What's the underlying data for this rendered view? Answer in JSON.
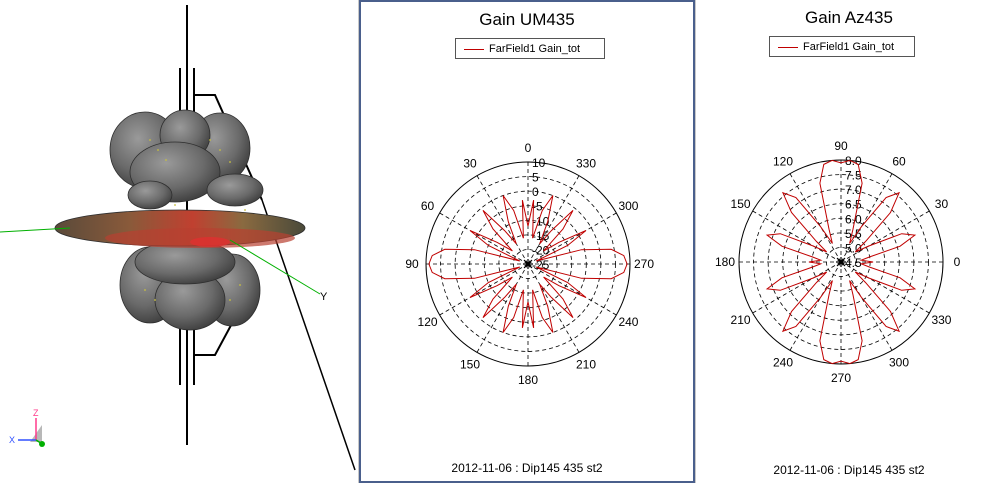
{
  "view3d": {
    "axis_labels": {
      "y": "Y",
      "z": "Z",
      "x": "X"
    },
    "colors": {
      "lobe": "#6a6a6a",
      "lobe_edge": "#2e2e2e",
      "mast": "#000000",
      "axis_y": "#00b000",
      "axis_z": "#ff3b8b"
    }
  },
  "chart_data": [
    {
      "type": "polar",
      "title": "Gain UM435",
      "legend": {
        "entries": [
          "FarField1 Gain_tot"
        ],
        "placement": "top"
      },
      "series": [
        {
          "name": "FarField1 Gain_tot",
          "color": "#c00000"
        }
      ],
      "angle_labels": [
        {
          "angle_deg": 0,
          "label": "0"
        },
        {
          "angle_deg": 30,
          "label": "30"
        },
        {
          "angle_deg": 60,
          "label": "60"
        },
        {
          "angle_deg": 90,
          "label": "90"
        },
        {
          "angle_deg": 120,
          "label": "120"
        },
        {
          "angle_deg": 150,
          "label": "150"
        },
        {
          "angle_deg": 180,
          "label": "180"
        },
        {
          "angle_deg": 210,
          "label": "210"
        },
        {
          "angle_deg": 240,
          "label": "240"
        },
        {
          "angle_deg": 270,
          "label": "270"
        },
        {
          "angle_deg": 300,
          "label": "300"
        },
        {
          "angle_deg": 330,
          "label": "330"
        }
      ],
      "angle_zero": "top",
      "angle_direction": "counterclockwise",
      "radial_range": [
        -25,
        10
      ],
      "radial_ticks": [
        10,
        5,
        0,
        -5,
        -10,
        -15,
        -20,
        -25
      ],
      "radial_tick_labels": [
        "10",
        "5",
        "0",
        "-5",
        "-10",
        "-15",
        "-20",
        "-25"
      ],
      "grid": true,
      "curve": [
        [
          0,
          -12
        ],
        [
          5,
          -3
        ],
        [
          10,
          -16
        ],
        [
          15,
          -6
        ],
        [
          20,
          0
        ],
        [
          25,
          -9
        ],
        [
          30,
          -17
        ],
        [
          35,
          -11
        ],
        [
          40,
          -1
        ],
        [
          45,
          -8
        ],
        [
          50,
          -18
        ],
        [
          55,
          -12
        ],
        [
          60,
          -2
        ],
        [
          65,
          -10
        ],
        [
          70,
          -22
        ],
        [
          75,
          -6
        ],
        [
          80,
          4
        ],
        [
          85,
          8
        ],
        [
          90,
          9
        ],
        [
          95,
          8
        ],
        [
          100,
          4
        ],
        [
          105,
          -6
        ],
        [
          110,
          -22
        ],
        [
          115,
          -10
        ],
        [
          120,
          -2
        ],
        [
          125,
          -12
        ],
        [
          130,
          -18
        ],
        [
          135,
          -8
        ],
        [
          140,
          -1
        ],
        [
          145,
          -11
        ],
        [
          150,
          -17
        ],
        [
          155,
          -9
        ],
        [
          160,
          0
        ],
        [
          165,
          -6
        ],
        [
          170,
          -16
        ],
        [
          175,
          -3
        ],
        [
          180,
          -12
        ],
        [
          185,
          -3
        ],
        [
          190,
          -16
        ],
        [
          195,
          -6
        ],
        [
          200,
          0
        ],
        [
          205,
          -9
        ],
        [
          210,
          -17
        ],
        [
          215,
          -11
        ],
        [
          220,
          -1
        ],
        [
          225,
          -8
        ],
        [
          230,
          -18
        ],
        [
          235,
          -12
        ],
        [
          240,
          -2
        ],
        [
          245,
          -10
        ],
        [
          250,
          -22
        ],
        [
          255,
          -6
        ],
        [
          260,
          4
        ],
        [
          265,
          8
        ],
        [
          270,
          9
        ],
        [
          275,
          8
        ],
        [
          280,
          4
        ],
        [
          285,
          -6
        ],
        [
          290,
          -22
        ],
        [
          295,
          -10
        ],
        [
          300,
          -2
        ],
        [
          305,
          -12
        ],
        [
          310,
          -18
        ],
        [
          315,
          -8
        ],
        [
          320,
          -1
        ],
        [
          325,
          -11
        ],
        [
          330,
          -17
        ],
        [
          335,
          -9
        ],
        [
          340,
          0
        ],
        [
          345,
          -6
        ],
        [
          350,
          -16
        ],
        [
          355,
          -3
        ]
      ],
      "footer": "2012-11-06 : Dip145 435 st2"
    },
    {
      "type": "polar",
      "title": "Gain Az435",
      "legend": {
        "entries": [
          "FarField1 Gain_tot"
        ],
        "placement": "top"
      },
      "series": [
        {
          "name": "FarField1 Gain_tot",
          "color": "#c00000"
        }
      ],
      "angle_labels": [
        {
          "angle_deg": 0,
          "label": "0"
        },
        {
          "angle_deg": 30,
          "label": "30"
        },
        {
          "angle_deg": 60,
          "label": "60"
        },
        {
          "angle_deg": 90,
          "label": "90"
        },
        {
          "angle_deg": 120,
          "label": "120"
        },
        {
          "angle_deg": 150,
          "label": "150"
        },
        {
          "angle_deg": 180,
          "label": "180"
        },
        {
          "angle_deg": 210,
          "label": "210"
        },
        {
          "angle_deg": 240,
          "label": "240"
        },
        {
          "angle_deg": 270,
          "label": "270"
        },
        {
          "angle_deg": 300,
          "label": "300"
        },
        {
          "angle_deg": 330,
          "label": "330"
        }
      ],
      "angle_zero": "right",
      "angle_direction": "counterclockwise",
      "radial_range": [
        4.5,
        8.0
      ],
      "radial_ticks": [
        8.0,
        7.5,
        7.0,
        6.5,
        6.0,
        5.5,
        5.0,
        4.5
      ],
      "radial_tick_labels": [
        "8.0",
        "7.5",
        "7.0",
        "6.5",
        "6.0",
        "5.5",
        "5.0",
        "4.5"
      ],
      "grid": true,
      "curve": [
        [
          0,
          5.6
        ],
        [
          5,
          5.2
        ],
        [
          10,
          5.5
        ],
        [
          15,
          6.6
        ],
        [
          20,
          7.2
        ],
        [
          25,
          6.8
        ],
        [
          30,
          5.6
        ],
        [
          35,
          5.1
        ],
        [
          40,
          5.6
        ],
        [
          45,
          6.9
        ],
        [
          50,
          7.6
        ],
        [
          55,
          7.2
        ],
        [
          60,
          5.9
        ],
        [
          65,
          5.2
        ],
        [
          70,
          5.7
        ],
        [
          75,
          7.3
        ],
        [
          80,
          7.9
        ],
        [
          85,
          8.0
        ],
        [
          90,
          7.9
        ],
        [
          95,
          8.0
        ],
        [
          100,
          7.9
        ],
        [
          105,
          7.3
        ],
        [
          110,
          5.7
        ],
        [
          115,
          5.2
        ],
        [
          120,
          5.9
        ],
        [
          125,
          7.2
        ],
        [
          130,
          7.6
        ],
        [
          135,
          6.9
        ],
        [
          140,
          5.6
        ],
        [
          145,
          5.1
        ],
        [
          150,
          5.6
        ],
        [
          155,
          6.8
        ],
        [
          160,
          7.2
        ],
        [
          165,
          6.6
        ],
        [
          170,
          5.5
        ],
        [
          175,
          5.2
        ],
        [
          180,
          5.6
        ],
        [
          185,
          5.2
        ],
        [
          190,
          5.5
        ],
        [
          195,
          6.6
        ],
        [
          200,
          7.2
        ],
        [
          205,
          6.8
        ],
        [
          210,
          5.6
        ],
        [
          215,
          5.1
        ],
        [
          220,
          5.6
        ],
        [
          225,
          6.9
        ],
        [
          230,
          7.6
        ],
        [
          235,
          7.2
        ],
        [
          240,
          5.9
        ],
        [
          245,
          5.2
        ],
        [
          250,
          5.7
        ],
        [
          255,
          7.3
        ],
        [
          260,
          7.9
        ],
        [
          265,
          8.0
        ],
        [
          270,
          7.9
        ],
        [
          275,
          8.0
        ],
        [
          280,
          7.9
        ],
        [
          285,
          7.3
        ],
        [
          290,
          5.7
        ],
        [
          295,
          5.2
        ],
        [
          300,
          5.9
        ],
        [
          305,
          7.2
        ],
        [
          310,
          7.6
        ],
        [
          315,
          6.9
        ],
        [
          320,
          5.6
        ],
        [
          325,
          5.1
        ],
        [
          330,
          5.6
        ],
        [
          335,
          6.8
        ],
        [
          340,
          7.2
        ],
        [
          345,
          6.6
        ],
        [
          350,
          5.5
        ],
        [
          355,
          5.2
        ]
      ],
      "footer": "2012-11-06 : Dip145 435 st2"
    }
  ]
}
